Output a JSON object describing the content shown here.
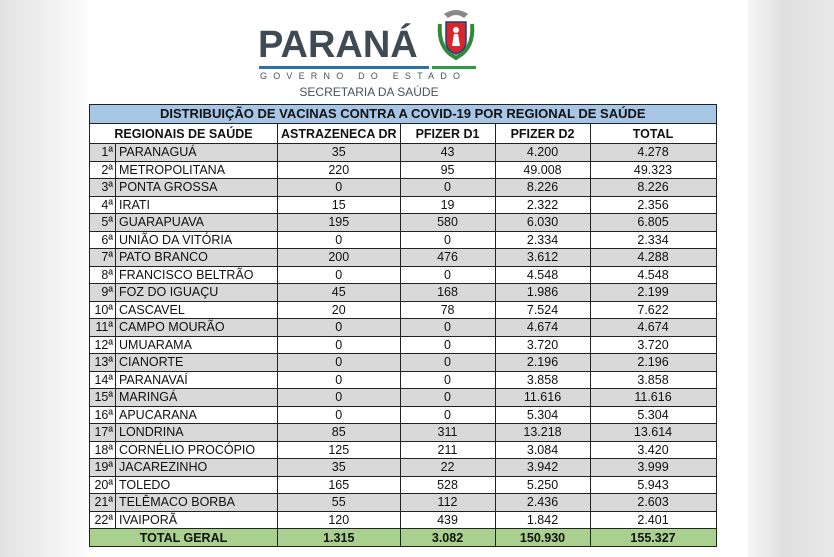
{
  "logo": {
    "word": "PARANÁ",
    "subtitle": "GOVERNO DO ESTADO",
    "department": "SECRETARIA DA SAÚDE",
    "colors": {
      "text": "#3f4a52",
      "blue": "#2a6fb0",
      "green": "#2f9a45"
    }
  },
  "table": {
    "title": "DISTRIBUIÇÃO DE VACINAS CONTRA A COVID-19 POR REGIONAL DE SAÚDE",
    "headers": [
      "REGIONAIS DE SAÚDE",
      "ASTRAZENECA DR",
      "PFIZER D1",
      "PFIZER D2",
      "TOTAL"
    ],
    "rows": [
      [
        "1ª",
        "PARANAGUÁ",
        "35",
        "43",
        "4.200",
        "4.278"
      ],
      [
        "2ª",
        "METROPOLITANA",
        "220",
        "95",
        "49.008",
        "49.323"
      ],
      [
        "3ª",
        "PONTA GROSSA",
        "0",
        "0",
        "8.226",
        "8.226"
      ],
      [
        "4ª",
        "IRATI",
        "15",
        "19",
        "2.322",
        "2.356"
      ],
      [
        "5ª",
        "GUARAPUAVA",
        "195",
        "580",
        "6.030",
        "6.805"
      ],
      [
        "6ª",
        "UNIÃO DA VITÓRIA",
        "0",
        "0",
        "2.334",
        "2.334"
      ],
      [
        "7ª",
        "PATO BRANCO",
        "200",
        "476",
        "3.612",
        "4.288"
      ],
      [
        "8ª",
        "FRANCISCO BELTRÃO",
        "0",
        "0",
        "4.548",
        "4.548"
      ],
      [
        "9ª",
        "FOZ DO IGUAÇU",
        "45",
        "168",
        "1.986",
        "2.199"
      ],
      [
        "10ª",
        "CASCAVEL",
        "20",
        "78",
        "7.524",
        "7.622"
      ],
      [
        "11ª",
        "CAMPO MOURÃO",
        "0",
        "0",
        "4.674",
        "4.674"
      ],
      [
        "12ª",
        "UMUARAMA",
        "0",
        "0",
        "3.720",
        "3.720"
      ],
      [
        "13ª",
        "CIANORTE",
        "0",
        "0",
        "2.196",
        "2.196"
      ],
      [
        "14ª",
        "PARANAVAÍ",
        "0",
        "0",
        "3.858",
        "3.858"
      ],
      [
        "15ª",
        "MARINGÁ",
        "0",
        "0",
        "11.616",
        "11.616"
      ],
      [
        "16ª",
        "APUCARANA",
        "0",
        "0",
        "5.304",
        "5.304"
      ],
      [
        "17ª",
        "LONDRINA",
        "85",
        "311",
        "13.218",
        "13.614"
      ],
      [
        "18ª",
        "CORNÉLIO PROCÓPIO",
        "125",
        "211",
        "3.084",
        "3.420"
      ],
      [
        "19ª",
        "JACAREZINHO",
        "35",
        "22",
        "3.942",
        "3.999"
      ],
      [
        "20ª",
        "TOLEDO",
        "165",
        "528",
        "5.250",
        "5.943"
      ],
      [
        "21ª",
        "TELÊMACO BORBA",
        "55",
        "112",
        "2.436",
        "2.603"
      ],
      [
        "22ª",
        "IVAIPORÃ",
        "120",
        "439",
        "1.842",
        "2.401"
      ]
    ],
    "total": [
      "TOTAL GERAL",
      "1.315",
      "3.082",
      "150.930",
      "155.327"
    ],
    "colors": {
      "title_bg": "#a7c6e6",
      "stripe": "#d9d9d9",
      "total_bg": "#a9d08e"
    }
  }
}
